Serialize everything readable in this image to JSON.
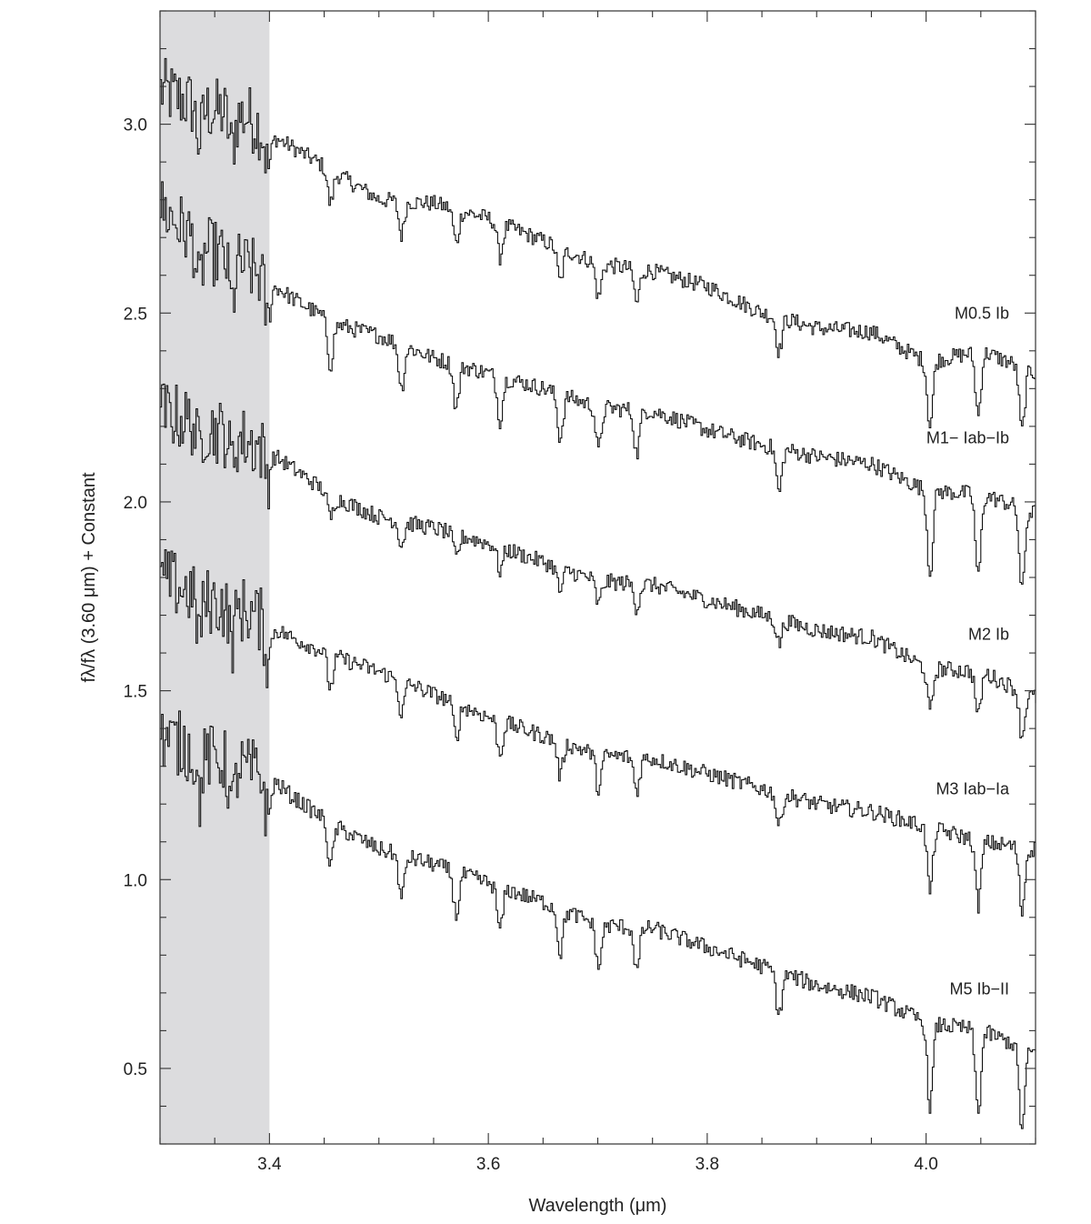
{
  "chart_data": {
    "type": "line",
    "title": "",
    "xlabel": "Wavelength (μm)",
    "ylabel": "fλ/fλ (3.60 μm) + Constant",
    "xlim": [
      3.3,
      4.1
    ],
    "ylim": [
      0.3,
      3.3
    ],
    "grid": false,
    "legend": "labels at right end of each series",
    "shaded_region": {
      "x": [
        3.3,
        3.4
      ],
      "color": "#dcdcde"
    },
    "x_ticks": [
      {
        "value": 3.4,
        "label": "3.4"
      },
      {
        "value": 3.6,
        "label": "3.6"
      },
      {
        "value": 3.8,
        "label": "3.8"
      },
      {
        "value": 4.0,
        "label": "4.0"
      }
    ],
    "y_ticks": [
      {
        "value": 0.5,
        "label": "0.5"
      },
      {
        "value": 1.0,
        "label": "1.0"
      },
      {
        "value": 1.5,
        "label": "1.5"
      },
      {
        "value": 2.0,
        "label": "2.0"
      },
      {
        "value": 2.5,
        "label": "2.5"
      },
      {
        "value": 3.0,
        "label": "3.0"
      }
    ],
    "series": [
      {
        "name": "M0.5 Ib",
        "x": [
          3.3,
          3.34,
          3.38,
          3.4,
          3.42,
          3.46,
          3.5,
          3.55,
          3.6,
          3.65,
          3.7,
          3.75,
          3.8,
          3.85,
          3.9,
          3.95,
          4.0,
          4.05,
          4.1
        ],
        "y": [
          3.09,
          3.04,
          3.02,
          2.97,
          2.94,
          2.87,
          2.8,
          2.79,
          2.75,
          2.69,
          2.63,
          2.61,
          2.57,
          2.5,
          2.46,
          2.45,
          2.37,
          2.4,
          2.34
        ],
        "label_y": 2.5
      },
      {
        "name": "M1− Iab−Ib",
        "x": [
          3.3,
          3.34,
          3.38,
          3.4,
          3.42,
          3.46,
          3.5,
          3.55,
          3.6,
          3.65,
          3.7,
          3.75,
          3.8,
          3.85,
          3.9,
          3.95,
          4.0,
          4.05,
          4.1
        ],
        "y": [
          2.78,
          2.67,
          2.62,
          2.58,
          2.54,
          2.47,
          2.44,
          2.38,
          2.34,
          2.3,
          2.25,
          2.24,
          2.19,
          2.15,
          2.12,
          2.1,
          2.03,
          2.02,
          1.97
        ],
        "label_y": 2.17
      },
      {
        "name": "M2 Ib",
        "x": [
          3.3,
          3.34,
          3.38,
          3.4,
          3.42,
          3.46,
          3.5,
          3.55,
          3.6,
          3.65,
          3.7,
          3.75,
          3.8,
          3.85,
          3.9,
          3.95,
          4.0,
          4.05,
          4.1
        ],
        "y": [
          2.24,
          2.2,
          2.16,
          2.13,
          2.09,
          2.01,
          1.96,
          1.93,
          1.89,
          1.84,
          1.79,
          1.78,
          1.74,
          1.7,
          1.66,
          1.64,
          1.56,
          1.55,
          1.48
        ],
        "label_y": 1.65
      },
      {
        "name": "M3 Iab−Ia",
        "x": [
          3.3,
          3.34,
          3.38,
          3.4,
          3.42,
          3.46,
          3.5,
          3.55,
          3.6,
          3.65,
          3.7,
          3.75,
          3.8,
          3.85,
          3.9,
          3.95,
          4.0,
          4.05,
          4.1
        ],
        "y": [
          1.8,
          1.74,
          1.71,
          1.67,
          1.64,
          1.59,
          1.55,
          1.49,
          1.43,
          1.38,
          1.33,
          1.32,
          1.28,
          1.24,
          1.2,
          1.18,
          1.14,
          1.1,
          1.08
        ],
        "label_y": 1.24
      },
      {
        "name": "M5 Ib−II",
        "x": [
          3.3,
          3.34,
          3.38,
          3.4,
          3.42,
          3.46,
          3.5,
          3.55,
          3.6,
          3.65,
          3.7,
          3.75,
          3.8,
          3.85,
          3.9,
          3.95,
          4.0,
          4.05,
          4.1
        ],
        "y": [
          1.38,
          1.33,
          1.29,
          1.27,
          1.22,
          1.14,
          1.08,
          1.04,
          0.99,
          0.94,
          0.88,
          0.87,
          0.82,
          0.77,
          0.72,
          0.69,
          0.62,
          0.6,
          0.54
        ],
        "label_y": 0.71
      }
    ]
  }
}
